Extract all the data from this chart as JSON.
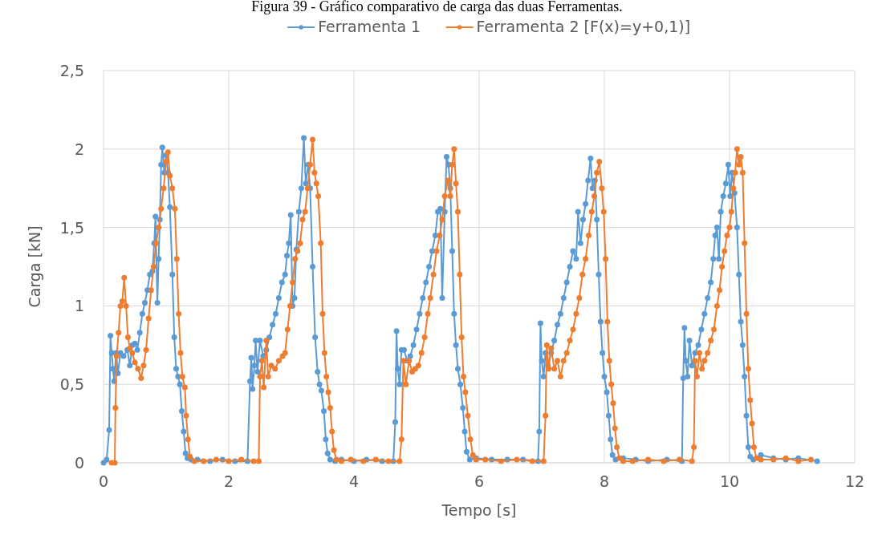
{
  "chart_data": {
    "type": "line",
    "title": "Figura 39 - Gráfico comparativo de carga das duas Ferramentas.",
    "xlabel": "Tempo [s]",
    "ylabel": "Carga [kN]",
    "xlim": [
      0,
      12
    ],
    "xticks": [
      0,
      2,
      4,
      6,
      8,
      10,
      12
    ],
    "ylim": [
      0,
      2.5
    ],
    "yticks": [
      {
        "value": 0,
        "label": "0"
      },
      {
        "value": 0.5,
        "label": "0,5"
      },
      {
        "value": 1,
        "label": "1"
      },
      {
        "value": 1.5,
        "label": "1,5"
      },
      {
        "value": 2,
        "label": "2"
      },
      {
        "value": 2.5,
        "label": "2,5"
      }
    ],
    "grid": true,
    "legend": "top",
    "marker": "circle",
    "line_style": "solid",
    "series": [
      {
        "name": "Ferramenta 1",
        "color": "#5b9bd5",
        "x": [
          0,
          0.05,
          0.09,
          0.11,
          0.13,
          0.15,
          0.17,
          0.2,
          0.23,
          0.27,
          0.32,
          0.38,
          0.42,
          0.46,
          0.5,
          0.54,
          0.58,
          0.62,
          0.66,
          0.7,
          0.74,
          0.78,
          0.81,
          0.83,
          0.86,
          0.88,
          0.9,
          0.92,
          0.94,
          0.97,
          1,
          1.03,
          1.06,
          1.1,
          1.13,
          1.16,
          1.19,
          1.22,
          1.25,
          1.28,
          1.31,
          1.34,
          1.4,
          1.5,
          1.7,
          1.9,
          2.1,
          2.3,
          2.34,
          2.36,
          2.38,
          2.41,
          2.43,
          2.46,
          2.5,
          2.55,
          2.6,
          2.65,
          2.7,
          2.75,
          2.8,
          2.85,
          2.9,
          2.93,
          2.96,
          2.99,
          3.02,
          3.05,
          3.08,
          3.12,
          3.16,
          3.2,
          3.23,
          3.27,
          3.3,
          3.34,
          3.38,
          3.42,
          3.45,
          3.48,
          3.52,
          3.55,
          3.58,
          3.62,
          3.7,
          3.8,
          4,
          4.2,
          4.45,
          4.63,
          4.66,
          4.68,
          4.7,
          4.73,
          4.76,
          4.8,
          4.85,
          4.9,
          4.95,
          5,
          5.05,
          5.1,
          5.15,
          5.2,
          5.25,
          5.3,
          5.34,
          5.38,
          5.41,
          5.45,
          5.48,
          5.51,
          5.54,
          5.57,
          5.6,
          5.63,
          5.66,
          5.7,
          5.74,
          5.77,
          5.8,
          5.85,
          5.95,
          6.2,
          6.45,
          6.7,
          6.94,
          6.96,
          6.98,
          7,
          7.03,
          7.06,
          7.1,
          7.15,
          7.2,
          7.25,
          7.3,
          7.35,
          7.4,
          7.45,
          7.5,
          7.55,
          7.58,
          7.62,
          7.66,
          7.7,
          7.74,
          7.78,
          7.81,
          7.85,
          7.88,
          7.91,
          7.94,
          7.97,
          8,
          8.04,
          8.07,
          8.1,
          8.13,
          8.18,
          8.3,
          8.5,
          8.7,
          9,
          9.24,
          9.26,
          9.28,
          9.3,
          9.33,
          9.36,
          9.4,
          9.45,
          9.5,
          9.55,
          9.6,
          9.65,
          9.7,
          9.74,
          9.77,
          9.8,
          9.83,
          9.86,
          9.9,
          9.94,
          9.98,
          10.01,
          10.04,
          10.08,
          10.12,
          10.15,
          10.18,
          10.21,
          10.24,
          10.27,
          10.3,
          10.33,
          10.38,
          10.5,
          10.7,
          10.9,
          11.1,
          11.4
        ],
        "values": [
          0,
          0.02,
          0.21,
          0.81,
          0.7,
          0.6,
          0.52,
          0.7,
          0.57,
          0.7,
          0.68,
          0.72,
          0.62,
          0.75,
          0.76,
          0.72,
          0.83,
          0.95,
          1.02,
          1.1,
          1.2,
          1.22,
          1.4,
          1.57,
          1.02,
          1.3,
          1.55,
          1.9,
          2.01,
          1.85,
          1.96,
          1.85,
          1.63,
          1.2,
          0.8,
          0.6,
          0.55,
          0.5,
          0.33,
          0.2,
          0.06,
          0.03,
          0.02,
          0.02,
          0.01,
          0.02,
          0.01,
          0.01,
          0.52,
          0.67,
          0.47,
          0.62,
          0.78,
          0.58,
          0.78,
          0.68,
          0.72,
          0.8,
          0.88,
          0.95,
          1.05,
          1.15,
          1.2,
          1.32,
          1.4,
          1.58,
          1,
          1.05,
          1.36,
          1.6,
          1.75,
          2.07,
          1.78,
          1.9,
          1.75,
          1.25,
          0.8,
          0.58,
          0.5,
          0.46,
          0.33,
          0.15,
          0.06,
          0.02,
          0.01,
          0.02,
          0.01,
          0.02,
          0.01,
          0.01,
          0.26,
          0.84,
          0.6,
          0.5,
          0.72,
          0.72,
          0.65,
          0.68,
          0.75,
          0.85,
          0.95,
          1.05,
          1.15,
          1.25,
          1.35,
          1.45,
          1.6,
          1.62,
          1.05,
          1.6,
          1.95,
          1.9,
          1.75,
          1.35,
          0.95,
          0.75,
          0.6,
          0.5,
          0.35,
          0.2,
          0.07,
          0.02,
          0.03,
          0.02,
          0.02,
          0.02,
          0.01,
          0.2,
          0.89,
          0.65,
          0.55,
          0.7,
          0.62,
          0.7,
          0.78,
          0.88,
          0.95,
          1.05,
          1.15,
          1.25,
          1.35,
          1.3,
          1.6,
          1.4,
          1.55,
          1.65,
          1.8,
          1.94,
          1.75,
          1.8,
          1.55,
          1.2,
          0.9,
          0.7,
          0.55,
          0.45,
          0.3,
          0.15,
          0.05,
          0.02,
          0.03,
          0.02,
          0.01,
          0.02,
          0.01,
          0.54,
          0.86,
          0.65,
          0.55,
          0.78,
          0.62,
          0.7,
          0.75,
          0.85,
          0.95,
          1.05,
          1.15,
          1.3,
          1.45,
          1.5,
          1.3,
          1.6,
          1.7,
          1.78,
          1.9,
          1.7,
          1.85,
          1.72,
          1.5,
          1.2,
          0.9,
          0.75,
          0.55,
          0.3,
          0.1,
          0.04,
          0.02,
          0.05,
          0.03,
          0.02,
          0.03,
          0.01
        ]
      },
      {
        "name": "Ferramenta 2 [F(x)=y+0,1)]",
        "color": "#ed7d31",
        "x": [
          0.13,
          0.18,
          0.19,
          0.21,
          0.24,
          0.27,
          0.3,
          0.33,
          0.36,
          0.39,
          0.42,
          0.46,
          0.5,
          0.55,
          0.6,
          0.64,
          0.68,
          0.72,
          0.76,
          0.8,
          0.84,
          0.88,
          0.92,
          0.96,
          1,
          1.03,
          1.06,
          1.1,
          1.14,
          1.17,
          1.2,
          1.23,
          1.26,
          1.3,
          1.32,
          1.35,
          1.38,
          1.45,
          1.6,
          1.8,
          2,
          2.2,
          2.4,
          2.48,
          2.5,
          2.53,
          2.56,
          2.6,
          2.63,
          2.68,
          2.74,
          2.8,
          2.86,
          2.9,
          2.94,
          2.98,
          3.02,
          3.06,
          3.1,
          3.14,
          3.18,
          3.22,
          3.26,
          3.3,
          3.34,
          3.37,
          3.4,
          3.43,
          3.47,
          3.5,
          3.53,
          3.56,
          3.59,
          3.62,
          3.65,
          3.68,
          3.72,
          3.8,
          3.95,
          4.15,
          4.35,
          4.55,
          4.73,
          4.76,
          4.79,
          4.83,
          4.88,
          4.93,
          4.98,
          5.03,
          5.08,
          5.13,
          5.18,
          5.22,
          5.27,
          5.32,
          5.37,
          5.41,
          5.45,
          5.5,
          5.54,
          5.57,
          5.6,
          5.63,
          5.66,
          5.69,
          5.72,
          5.75,
          5.78,
          5.82,
          5.86,
          5.9,
          5.95,
          6.1,
          6.35,
          6.6,
          6.85,
          7.03,
          7.06,
          7.08,
          7.11,
          7.15,
          7.2,
          7.25,
          7.3,
          7.35,
          7.4,
          7.45,
          7.5,
          7.55,
          7.6,
          7.65,
          7.7,
          7.75,
          7.8,
          7.84,
          7.88,
          7.92,
          7.96,
          7.99,
          8.02,
          8.05,
          8.08,
          8.11,
          8.14,
          8.17,
          8.2,
          8.24,
          8.3,
          8.45,
          8.7,
          8.95,
          9.2,
          9.4,
          9.43,
          9.45,
          9.48,
          9.52,
          9.56,
          9.6,
          9.65,
          9.7,
          9.75,
          9.8,
          9.84,
          9.88,
          9.92,
          9.96,
          10,
          10.03,
          10.06,
          10.09,
          10.12,
          10.15,
          10.18,
          10.21,
          10.24,
          10.27,
          10.3,
          10.33,
          10.36,
          10.39,
          10.43,
          10.5,
          10.7,
          10.9,
          11.1,
          11.3
        ],
        "values": [
          0,
          0,
          0.35,
          0.68,
          0.83,
          1,
          1.03,
          1.18,
          1,
          0.8,
          0.73,
          0.7,
          0.64,
          0.6,
          0.54,
          0.62,
          0.72,
          0.92,
          1.1,
          1.25,
          1.4,
          1.5,
          1.62,
          1.75,
          1.92,
          1.98,
          1.83,
          1.75,
          1.62,
          1.3,
          0.95,
          0.7,
          0.55,
          0.48,
          0.3,
          0.15,
          0.04,
          0.01,
          0.01,
          0.02,
          0.01,
          0.02,
          0.01,
          0.01,
          0.55,
          0.65,
          0.48,
          0.78,
          0.55,
          0.62,
          0.6,
          0.65,
          0.68,
          0.7,
          0.85,
          1,
          1.15,
          1.3,
          1.35,
          1.4,
          1.55,
          1.6,
          1.75,
          1.9,
          2.06,
          1.85,
          1.78,
          1.7,
          1.4,
          0.95,
          0.7,
          0.55,
          0.45,
          0.35,
          0.2,
          0.08,
          0.02,
          0.01,
          0.02,
          0.01,
          0.02,
          0.01,
          0.01,
          0.15,
          0.65,
          0.5,
          0.65,
          0.58,
          0.6,
          0.62,
          0.7,
          0.8,
          0.95,
          1.05,
          1.2,
          1.35,
          1.45,
          1.55,
          1.7,
          1.8,
          1.7,
          1.9,
          2,
          1.78,
          1.6,
          1.2,
          0.8,
          0.55,
          0.45,
          0.3,
          0.15,
          0.05,
          0.02,
          0.02,
          0.01,
          0.02,
          0.01,
          0.01,
          0.3,
          0.75,
          0.6,
          0.73,
          0.6,
          0.65,
          0.55,
          0.65,
          0.7,
          0.78,
          0.85,
          0.95,
          1.05,
          1.2,
          1.3,
          1.45,
          1.6,
          1.7,
          1.85,
          1.92,
          1.75,
          1.6,
          1.3,
          0.9,
          0.65,
          0.5,
          0.38,
          0.22,
          0.1,
          0.03,
          0.01,
          0.01,
          0.02,
          0.01,
          0.02,
          0.01,
          0.1,
          0.65,
          0.55,
          0.7,
          0.6,
          0.65,
          0.7,
          0.78,
          0.85,
          1,
          1.1,
          1.25,
          1.35,
          1.45,
          1.5,
          1.6,
          1.75,
          1.85,
          2,
          1.9,
          1.95,
          1.85,
          1.4,
          0.95,
          0.6,
          0.4,
          0.25,
          0.1,
          0.03,
          0.02,
          0.02,
          0.03,
          0.01,
          0.02
        ]
      }
    ]
  }
}
